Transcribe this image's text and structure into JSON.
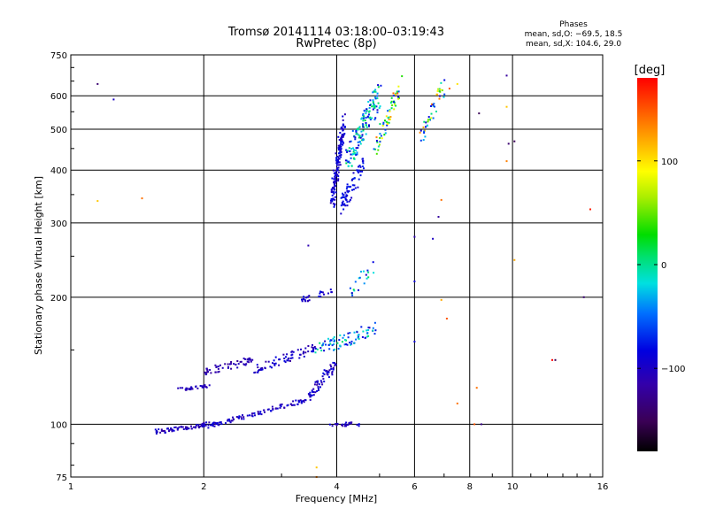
{
  "chart_data": {
    "type": "scatter",
    "title": "Tromsø 20141114 03:18:00–03:19:43",
    "subtitle": "RwPretec (8p)",
    "phase_box": {
      "heading": "Phases",
      "line1": "mean, sd,O: −69.5, 18.5",
      "line2": "mean, sd,X: 104.6, 29.0"
    },
    "xlabel": "Frequency [MHz]",
    "ylabel": "Stationary phase Virtual Height [km]",
    "xscale": "log",
    "yscale": "log",
    "xlim": [
      1,
      16
    ],
    "ylim": [
      75,
      750
    ],
    "xticks": [
      1,
      2,
      4,
      6,
      8,
      10,
      16
    ],
    "xtick_labels": [
      "1",
      "2",
      "4",
      "6",
      "8",
      "10",
      "16"
    ],
    "yticks": [
      75,
      100,
      200,
      300,
      400,
      500,
      600,
      750
    ],
    "ytick_labels": [
      "75",
      "100",
      "200",
      "300",
      "400",
      "500",
      "600",
      "750"
    ],
    "grid": true,
    "colorbar": {
      "label": "[deg]",
      "range": [
        -180,
        180
      ],
      "ticks": [
        100,
        0,
        -100
      ],
      "tick_labels": [
        "100",
        "0",
        "−100"
      ]
    },
    "clusters": [
      {
        "x": [
          1.55,
          2.05
        ],
        "y": [
          96,
          100
        ],
        "jitter": 0.012,
        "n": 70,
        "phase": [
          -120,
          -85
        ]
      },
      {
        "x": [
          2.05,
          3.4
        ],
        "y": [
          99,
          114
        ],
        "jitter": 0.012,
        "n": 100,
        "phase": [
          -120,
          -80
        ]
      },
      {
        "x": [
          3.4,
          4.0
        ],
        "y": [
          114,
          140
        ],
        "jitter": 0.03,
        "n": 60,
        "phase": [
          -120,
          -80
        ]
      },
      {
        "x": [
          3.85,
          4.5
        ],
        "y": [
          100,
          100
        ],
        "jitter": 0.01,
        "n": 25,
        "phase": [
          -120,
          -80
        ]
      },
      {
        "x": [
          1.75,
          2.05
        ],
        "y": [
          121,
          123
        ],
        "jitter": 0.008,
        "n": 35,
        "phase": [
          -120,
          -100
        ]
      },
      {
        "x": [
          2.0,
          2.6
        ],
        "y": [
          133,
          142
        ],
        "jitter": 0.02,
        "n": 55,
        "phase": [
          -125,
          -100
        ]
      },
      {
        "x": [
          2.6,
          3.6
        ],
        "y": [
          135,
          152
        ],
        "jitter": 0.025,
        "n": 70,
        "phase": [
          -120,
          -80
        ]
      },
      {
        "x": [
          3.6,
          4.9
        ],
        "y": [
          150,
          168
        ],
        "jitter": 0.04,
        "n": 80,
        "phase": [
          -110,
          10
        ]
      },
      {
        "x": [
          3.3,
          4.0
        ],
        "y": [
          196,
          208
        ],
        "jitter": 0.015,
        "n": 25,
        "phase": [
          -110,
          -80
        ]
      },
      {
        "x": [
          4.2,
          4.9
        ],
        "y": [
          200,
          240
        ],
        "jitter": 0.04,
        "n": 20,
        "phase": [
          -100,
          20
        ]
      },
      {
        "x": [
          3.9,
          4.15
        ],
        "y": [
          335,
          520
        ],
        "jitter": 0.06,
        "n": 160,
        "phase": [
          -110,
          -75
        ]
      },
      {
        "x": [
          4.1,
          4.6
        ],
        "y": [
          330,
          410
        ],
        "jitter": 0.05,
        "n": 70,
        "phase": [
          -100,
          -70
        ]
      },
      {
        "x": [
          4.2,
          5.0
        ],
        "y": [
          420,
          610
        ],
        "jitter": 0.08,
        "n": 150,
        "phase": [
          -100,
          20
        ]
      },
      {
        "x": [
          4.9,
          5.6
        ],
        "y": [
          450,
          640
        ],
        "jitter": 0.05,
        "n": 60,
        "phase": [
          -90,
          150
        ]
      },
      {
        "x": [
          6.2,
          7.0
        ],
        "y": [
          480,
          640
        ],
        "jitter": 0.05,
        "n": 45,
        "phase": [
          -110,
          140
        ]
      }
    ],
    "points": [
      {
        "x": 1.15,
        "y": 640,
        "phase": -140
      },
      {
        "x": 1.25,
        "y": 588,
        "phase": -100
      },
      {
        "x": 1.15,
        "y": 338,
        "phase": 110
      },
      {
        "x": 1.45,
        "y": 343,
        "phase": 140
      },
      {
        "x": 3.45,
        "y": 265,
        "phase": -110
      },
      {
        "x": 7.5,
        "y": 640,
        "phase": 100
      },
      {
        "x": 7.2,
        "y": 624,
        "phase": 150
      },
      {
        "x": 8.4,
        "y": 545,
        "phase": -150
      },
      {
        "x": 9.7,
        "y": 670,
        "phase": -120
      },
      {
        "x": 9.7,
        "y": 565,
        "phase": 110
      },
      {
        "x": 9.8,
        "y": 462,
        "phase": -140
      },
      {
        "x": 10.1,
        "y": 468,
        "phase": -150
      },
      {
        "x": 9.7,
        "y": 420,
        "phase": 135
      },
      {
        "x": 6.9,
        "y": 340,
        "phase": 140
      },
      {
        "x": 6.8,
        "y": 310,
        "phase": -120
      },
      {
        "x": 6.0,
        "y": 278,
        "phase": -110
      },
      {
        "x": 6.6,
        "y": 275,
        "phase": -100
      },
      {
        "x": 10.1,
        "y": 245,
        "phase": 120
      },
      {
        "x": 15.0,
        "y": 323,
        "phase": 170
      },
      {
        "x": 6.0,
        "y": 218,
        "phase": -90
      },
      {
        "x": 6.9,
        "y": 197,
        "phase": 120
      },
      {
        "x": 7.1,
        "y": 178,
        "phase": 150
      },
      {
        "x": 6.0,
        "y": 157,
        "phase": -90
      },
      {
        "x": 12.5,
        "y": 142,
        "phase": -150
      },
      {
        "x": 12.3,
        "y": 142,
        "phase": 180
      },
      {
        "x": 14.5,
        "y": 200,
        "phase": -140
      },
      {
        "x": 8.5,
        "y": 100,
        "phase": -130
      },
      {
        "x": 8.2,
        "y": 100,
        "phase": 150
      },
      {
        "x": 8.3,
        "y": 122,
        "phase": 140
      },
      {
        "x": 7.5,
        "y": 112,
        "phase": 140
      },
      {
        "x": 3.6,
        "y": 79,
        "phase": 110
      },
      {
        "x": 3.6,
        "y": 75,
        "phase": 135
      }
    ]
  }
}
